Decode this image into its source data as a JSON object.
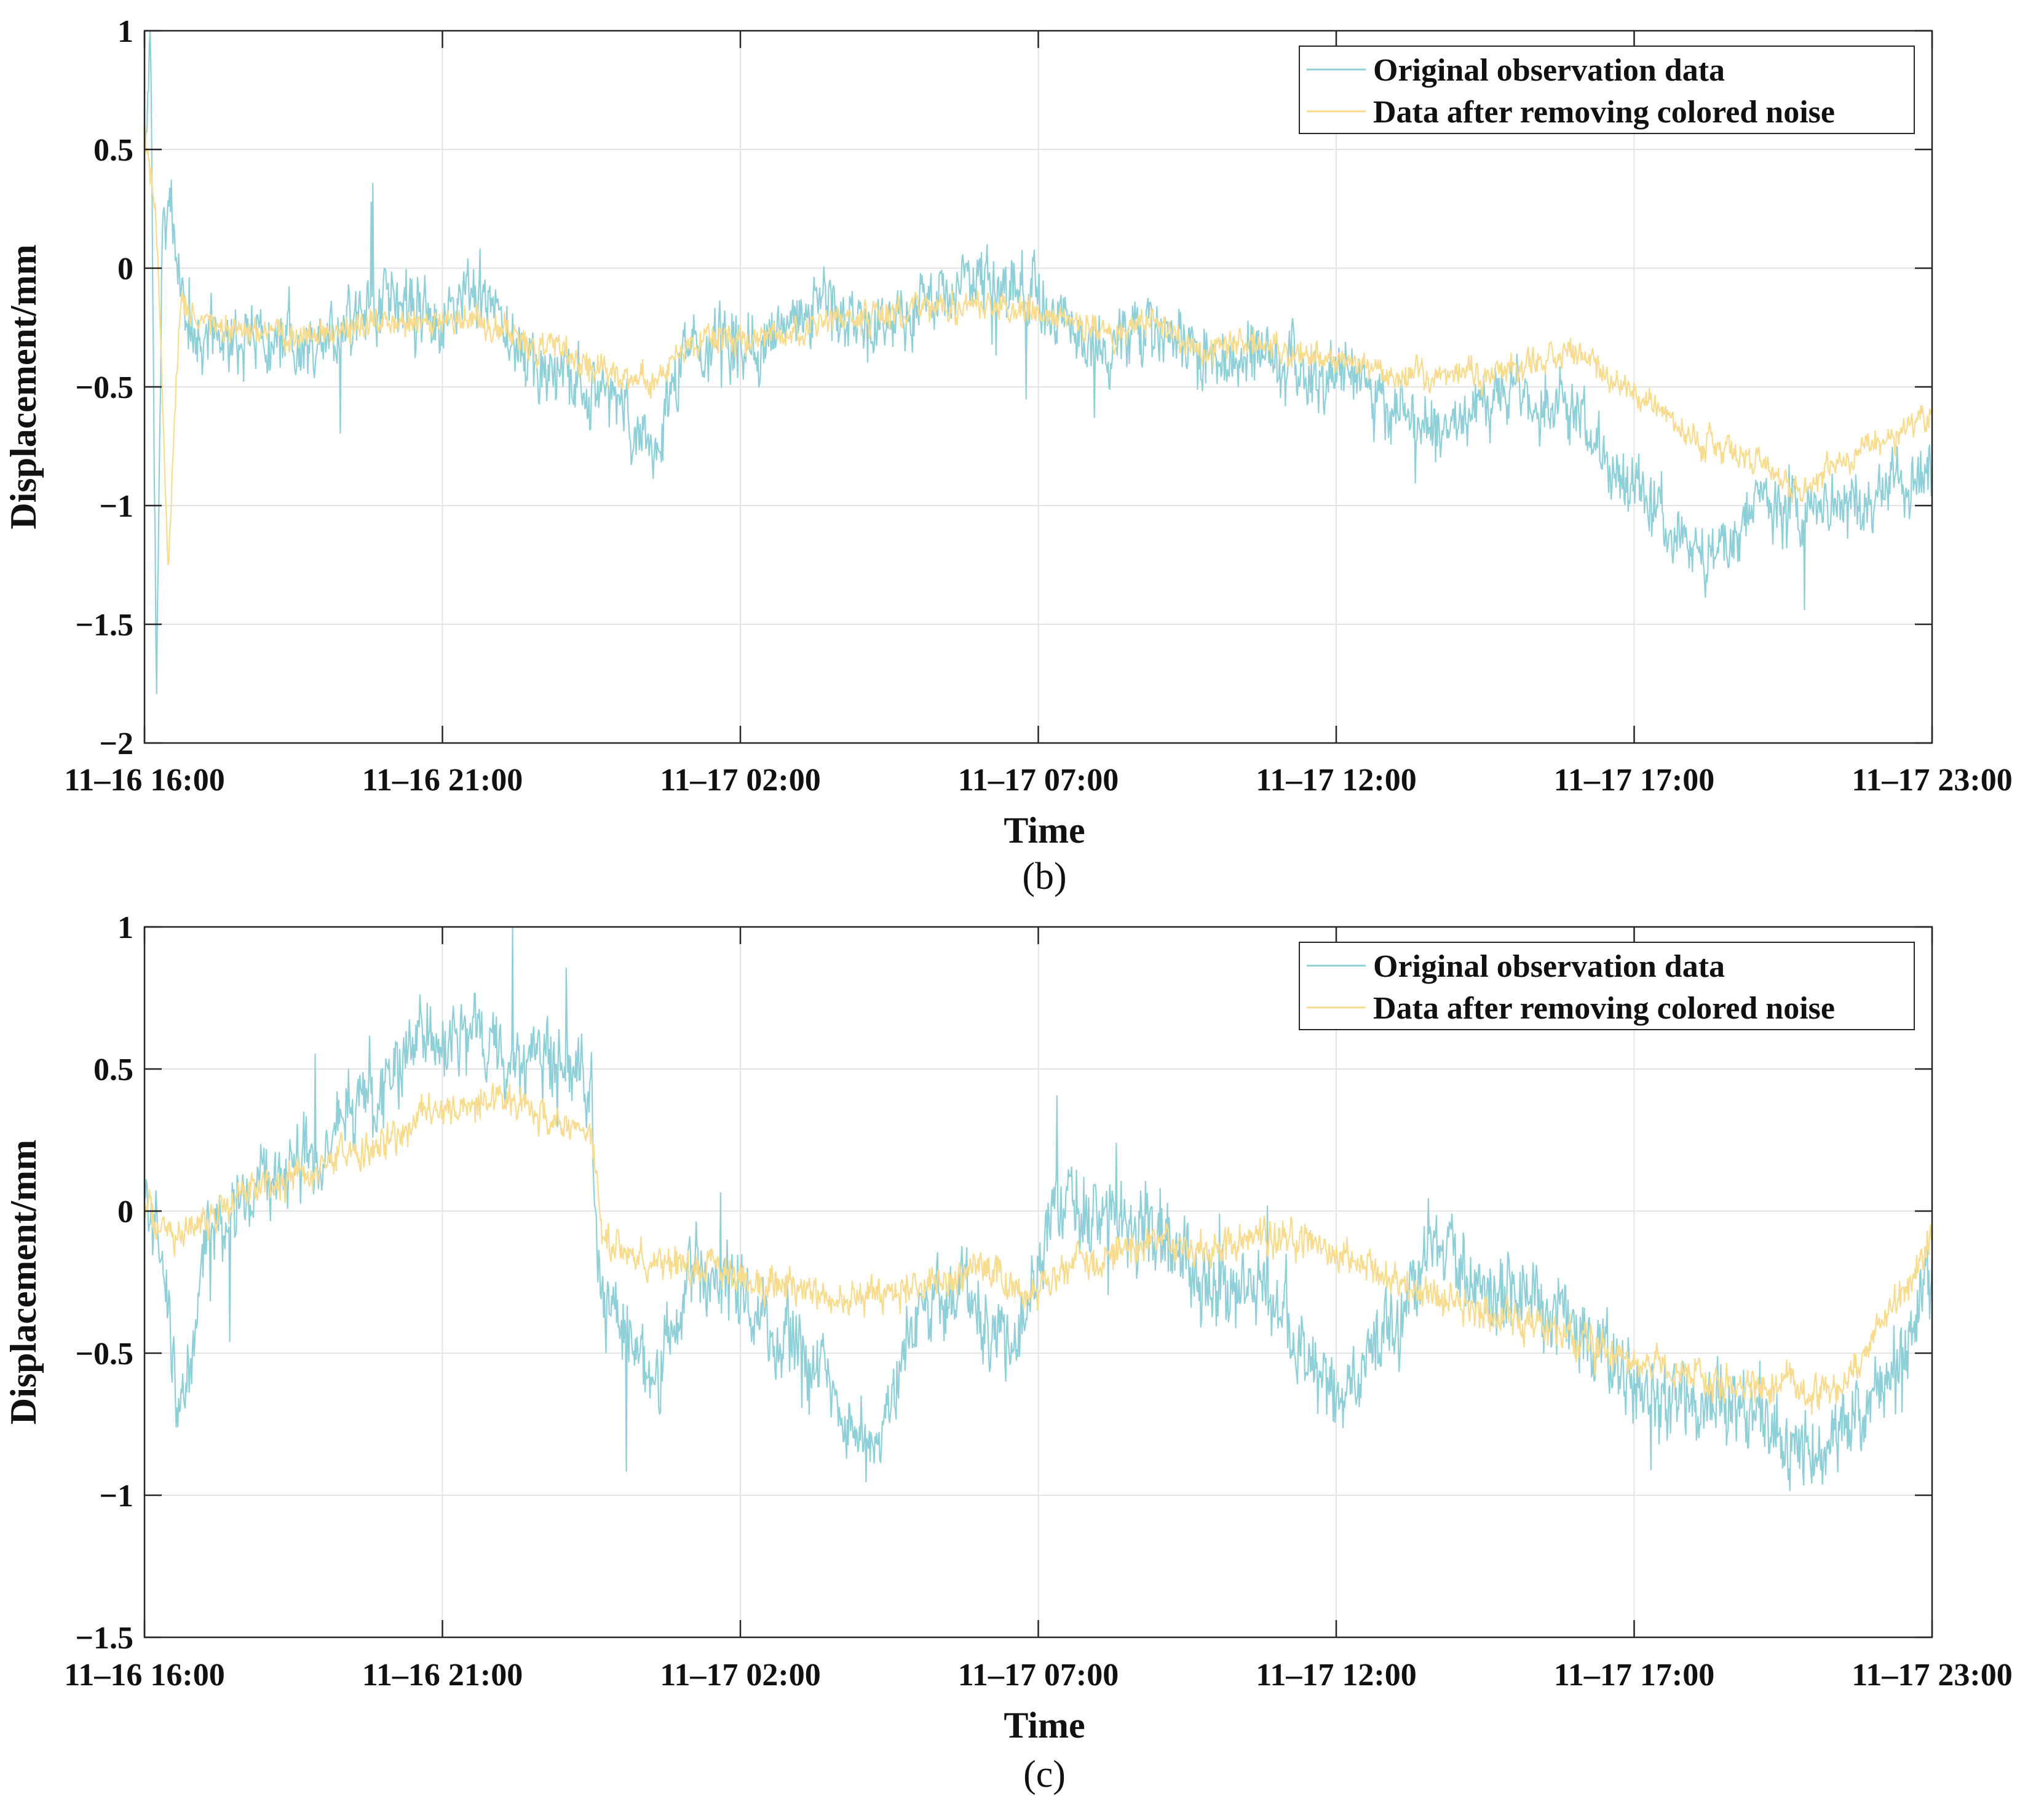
{
  "chart_data": [
    {
      "type": "line",
      "panel_label": "(b)",
      "xlabel": "Time",
      "ylabel": "Displacement/mm",
      "ylim": [
        -2,
        1
      ],
      "yticks": [
        1,
        0.5,
        0,
        -0.5,
        -1,
        -1.5,
        -2
      ],
      "ytick_labels": [
        "1",
        "0.5",
        "0",
        "−0.5",
        "−1",
        "−1.5",
        "−2"
      ],
      "xlim_hours": [
        0,
        30
      ],
      "xticks_hours": [
        0,
        5,
        10,
        15,
        20,
        25,
        30
      ],
      "xtick_labels": [
        "11–16 16:00",
        "11–16 21:00",
        "11–17 02:00",
        "11–17 07:00",
        "11–17 12:00",
        "11–17 17:00",
        "11–17 23:00"
      ],
      "grid": true,
      "legend_position": "top-right",
      "series": [
        {
          "name": "Original observation data",
          "color": "#8fd0d8",
          "x_hours": [
            0,
            0.1,
            0.2,
            0.3,
            0.45,
            0.6,
            0.8,
            1.2,
            2,
            3,
            4,
            4.8,
            5.5,
            6.5,
            7.2,
            8,
            8.5,
            9,
            9.5,
            10,
            10.8,
            11.5,
            12.5,
            13.3,
            14,
            14.8,
            15.5,
            16.2,
            17,
            17.8,
            18.5,
            19.5,
            20.3,
            21,
            21.8,
            22.5,
            23.2,
            24,
            24.8,
            25.5,
            26.2,
            27,
            27.8,
            28.5,
            29.3,
            30
          ],
          "y": [
            0.5,
            0.95,
            -1.8,
            0.1,
            0.25,
            -0.05,
            -0.3,
            -0.28,
            -0.3,
            -0.28,
            -0.15,
            -0.2,
            -0.12,
            -0.38,
            -0.5,
            -0.55,
            -0.8,
            -0.4,
            -0.3,
            -0.35,
            -0.25,
            -0.15,
            -0.25,
            -0.12,
            -0.05,
            -0.1,
            -0.25,
            -0.35,
            -0.2,
            -0.4,
            -0.35,
            -0.45,
            -0.45,
            -0.65,
            -0.7,
            -0.55,
            -0.55,
            -0.6,
            -0.85,
            -1.05,
            -1.25,
            -1.05,
            -1.0,
            -1.0,
            -0.95,
            -0.8
          ]
        },
        {
          "name": "Data after removing colored noise",
          "color": "#f7dc8f",
          "x_hours": [
            0,
            0.2,
            0.4,
            0.6,
            0.8,
            1.2,
            2,
            3,
            4,
            4.8,
            5.5,
            6.5,
            7.2,
            8,
            8.5,
            9,
            9.5,
            10,
            10.8,
            11.5,
            12.5,
            13.3,
            14,
            14.8,
            15.5,
            16.2,
            17,
            17.8,
            18.5,
            19.5,
            20.3,
            21,
            21.8,
            22.5,
            23.2,
            24,
            24.8,
            25.5,
            26.2,
            27,
            27.8,
            28.5,
            29.3,
            30
          ],
          "y": [
            0.6,
            0.2,
            -1.25,
            -0.15,
            -0.2,
            -0.25,
            -0.28,
            -0.3,
            -0.22,
            -0.25,
            -0.2,
            -0.32,
            -0.38,
            -0.45,
            -0.5,
            -0.35,
            -0.3,
            -0.32,
            -0.28,
            -0.22,
            -0.2,
            -0.15,
            -0.15,
            -0.18,
            -0.2,
            -0.28,
            -0.22,
            -0.38,
            -0.3,
            -0.38,
            -0.4,
            -0.45,
            -0.45,
            -0.45,
            -0.4,
            -0.35,
            -0.5,
            -0.6,
            -0.75,
            -0.8,
            -0.95,
            -0.8,
            -0.72,
            -0.6
          ]
        }
      ]
    },
    {
      "type": "line",
      "panel_label": "(c)",
      "xlabel": "Time",
      "ylabel": "Displacement/mm",
      "ylim": [
        -1.5,
        1
      ],
      "yticks": [
        1,
        0.5,
        0,
        -0.5,
        -1,
        -1.5
      ],
      "ytick_labels": [
        "1",
        "0.5",
        "0",
        "−0.5",
        "−1",
        "−1.5"
      ],
      "xlim_hours": [
        0,
        30
      ],
      "xticks_hours": [
        0,
        5,
        10,
        15,
        20,
        25,
        30
      ],
      "xtick_labels": [
        "11–16 16:00",
        "11–16 21:00",
        "11–17 02:00",
        "11–17 07:00",
        "11–17 12:00",
        "11–17 17:00",
        "11–17 23:00"
      ],
      "grid": true,
      "legend_position": "top-right",
      "series": [
        {
          "name": "Original observation data",
          "color": "#8fd0d8",
          "x_hours": [
            0,
            0.3,
            0.6,
            1,
            1.5,
            2,
            3,
            3.5,
            4,
            4.5,
            5,
            5.5,
            6.2,
            7,
            7.5,
            7.6,
            8,
            8.5,
            9.2,
            10,
            10.8,
            11.5,
            12,
            12.5,
            13,
            13.8,
            14.5,
            15,
            15.5,
            16,
            16.8,
            17.5,
            18.2,
            19,
            19.5,
            20,
            21,
            21.8,
            22.5,
            23.2,
            24,
            24.8,
            25.5,
            26.2,
            27,
            27.5,
            28,
            28.5,
            29.3,
            30
          ],
          "y": [
            0.0,
            -0.2,
            -0.8,
            -0.1,
            0.0,
            0.1,
            0.2,
            0.4,
            0.45,
            0.55,
            0.6,
            0.6,
            0.55,
            0.5,
            0.45,
            -0.3,
            -0.4,
            -0.6,
            -0.2,
            -0.3,
            -0.45,
            -0.6,
            -0.8,
            -0.75,
            -0.3,
            -0.3,
            -0.5,
            -0.2,
            0.1,
            0.0,
            -0.05,
            -0.2,
            -0.3,
            -0.3,
            -0.5,
            -0.65,
            -0.4,
            -0.1,
            -0.3,
            -0.3,
            -0.4,
            -0.6,
            -0.7,
            -0.65,
            -0.7,
            -0.8,
            -0.85,
            -0.8,
            -0.6,
            -0.2
          ]
        },
        {
          "name": "Data after removing colored noise",
          "color": "#f7dc8f",
          "x_hours": [
            0,
            0.5,
            1,
            1.5,
            2,
            3,
            4,
            5,
            6,
            7,
            7.5,
            7.7,
            8.5,
            9.5,
            10.5,
            11.5,
            12.5,
            13.3,
            14,
            14.8,
            15.5,
            16.2,
            17,
            17.8,
            18.5,
            19.5,
            20.5,
            21.5,
            22.5,
            23.5,
            24.5,
            25.5,
            26.5,
            27.5,
            28.3,
            29,
            30
          ],
          "y": [
            0.0,
            -0.1,
            -0.05,
            0.05,
            0.1,
            0.15,
            0.25,
            0.35,
            0.4,
            0.3,
            0.25,
            -0.1,
            -0.2,
            -0.2,
            -0.25,
            -0.3,
            -0.3,
            -0.25,
            -0.2,
            -0.3,
            -0.2,
            -0.15,
            -0.1,
            -0.15,
            -0.1,
            -0.1,
            -0.2,
            -0.3,
            -0.35,
            -0.4,
            -0.5,
            -0.55,
            -0.6,
            -0.6,
            -0.65,
            -0.45,
            -0.1
          ]
        }
      ]
    }
  ]
}
